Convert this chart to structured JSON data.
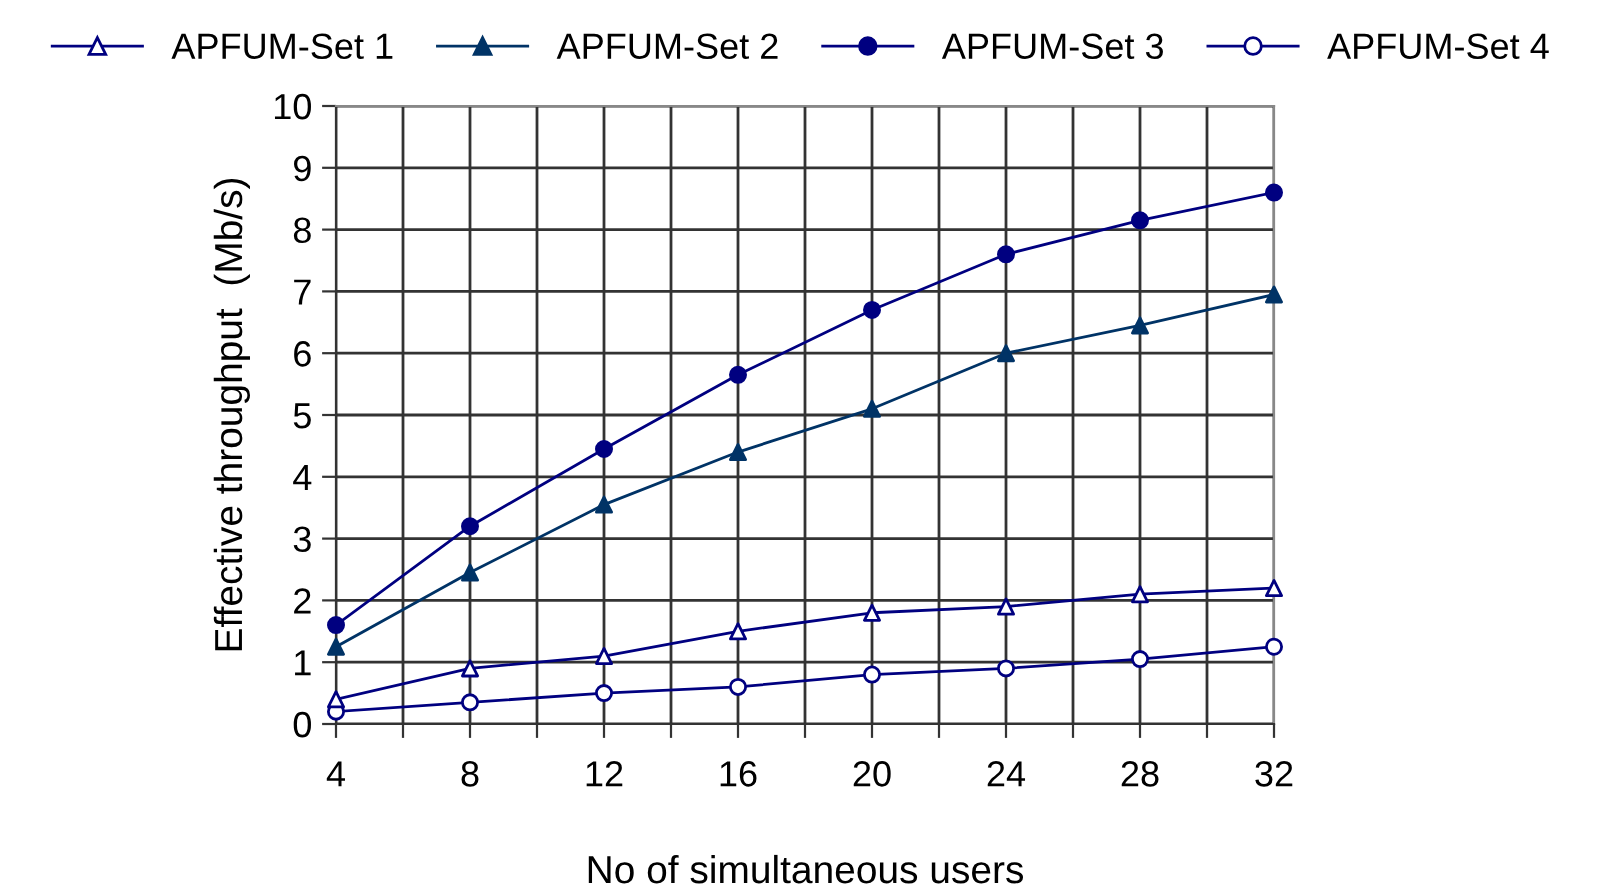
{
  "chart_data": {
    "type": "line",
    "xlabel": "No of simultaneous users",
    "ylabel": "Effective throughput  (Mb/s)",
    "x": [
      4,
      8,
      12,
      16,
      20,
      24,
      28,
      32
    ],
    "series": [
      {
        "name": "APFUM-Set 1",
        "color": "#000080",
        "marker": "triangle",
        "colors": [
          "#ffffff",
          "#ffffff",
          "#ffffff",
          "#ffffff",
          "#ffffff",
          "#ffffff",
          "#ffffff",
          "#ffffff"
        ],
        "values": [
          0.4,
          0.9,
          1.1,
          1.5,
          1.8,
          1.9,
          2.1,
          2.2
        ]
      },
      {
        "name": "APFUM-Set 2",
        "color": "#003366",
        "marker": "triangle",
        "values": [
          1.25,
          2.45,
          3.55,
          4.4,
          5.1,
          6.0,
          6.45,
          6.95
        ]
      },
      {
        "name": "APFUM-Set 3",
        "color": "#000080",
        "marker": "circle",
        "values": [
          1.6,
          3.2,
          4.45,
          5.65,
          6.7,
          7.6,
          8.15,
          8.6
        ]
      },
      {
        "name": "APFUM-Set 4",
        "color": "#000080",
        "marker": "circle",
        "colors": [
          "#ffffff",
          "#ffffff",
          "#ffffff",
          "#ffffff",
          "#ffffff",
          "#ffffff",
          "#ffffff",
          "#ffffff"
        ],
        "values": [
          0.2,
          0.35,
          0.5,
          0.6,
          0.8,
          0.9,
          1.05,
          1.25
        ]
      }
    ],
    "xlim": [
      4,
      32
    ],
    "ylim": [
      0,
      10
    ],
    "xticks": [
      4,
      {
        "value": 6,
        "label": null
      },
      8,
      {
        "value": 10,
        "label": null
      },
      12,
      {
        "value": 14,
        "label": null
      },
      16,
      {
        "value": 18,
        "label": null
      },
      20,
      {
        "value": 22,
        "label": null
      },
      24,
      {
        "value": 26,
        "label": null
      },
      28,
      {
        "value": 30,
        "label": null
      },
      32
    ],
    "yticks": [
      0,
      1,
      2,
      3,
      4,
      5,
      6,
      7,
      8,
      9,
      10
    ],
    "grid": true,
    "legend": "top",
    "line_style": "solid"
  }
}
